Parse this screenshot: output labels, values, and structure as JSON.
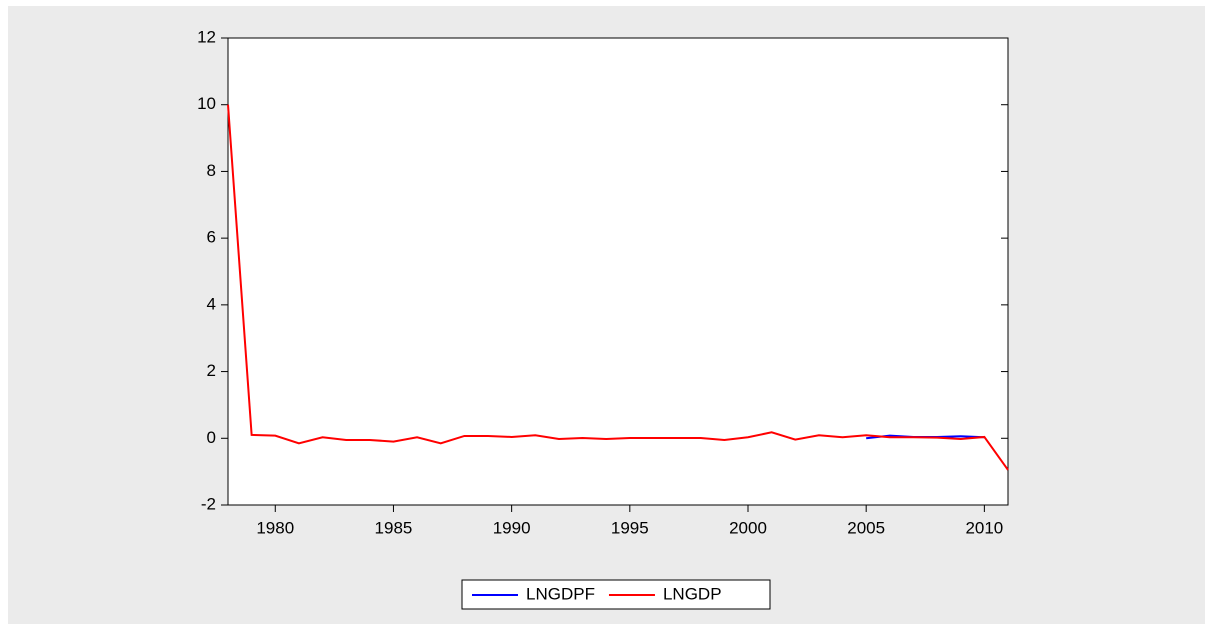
{
  "chart_data": {
    "type": "line",
    "x": [
      1978,
      1979,
      1980,
      1981,
      1982,
      1983,
      1984,
      1985,
      1986,
      1987,
      1988,
      1989,
      1990,
      1991,
      1992,
      1993,
      1994,
      1995,
      1996,
      1997,
      1998,
      1999,
      2000,
      2001,
      2002,
      2003,
      2004,
      2005,
      2006,
      2007,
      2008,
      2009,
      2010,
      2011
    ],
    "series": [
      {
        "name": "LNGDPF",
        "color": "#0000ff",
        "values": [
          null,
          null,
          null,
          null,
          null,
          null,
          null,
          null,
          null,
          null,
          null,
          null,
          null,
          null,
          null,
          null,
          null,
          null,
          null,
          null,
          null,
          null,
          null,
          null,
          null,
          null,
          null,
          0.0,
          0.08,
          0.04,
          0.04,
          0.06,
          0.03,
          null
        ]
      },
      {
        "name": "LNGDP",
        "color": "#ff0000",
        "values": [
          10.0,
          0.1,
          0.08,
          -0.15,
          0.03,
          -0.05,
          -0.05,
          -0.1,
          0.03,
          -0.15,
          0.07,
          0.07,
          0.04,
          0.09,
          -0.02,
          0.01,
          -0.02,
          0.01,
          0.01,
          0.01,
          0.01,
          -0.05,
          0.03,
          0.18,
          -0.04,
          0.09,
          0.03,
          0.09,
          0.03,
          0.03,
          0.02,
          -0.02,
          0.04,
          -0.95
        ]
      }
    ],
    "xlim": [
      1978,
      2011
    ],
    "xticks": [
      1980,
      1985,
      1990,
      1995,
      2000,
      2005,
      2010
    ],
    "ylim": [
      -2,
      12
    ],
    "yticks": [
      -2,
      0,
      2,
      4,
      6,
      8,
      10,
      12
    ],
    "grid": false,
    "legend": "bottom"
  }
}
